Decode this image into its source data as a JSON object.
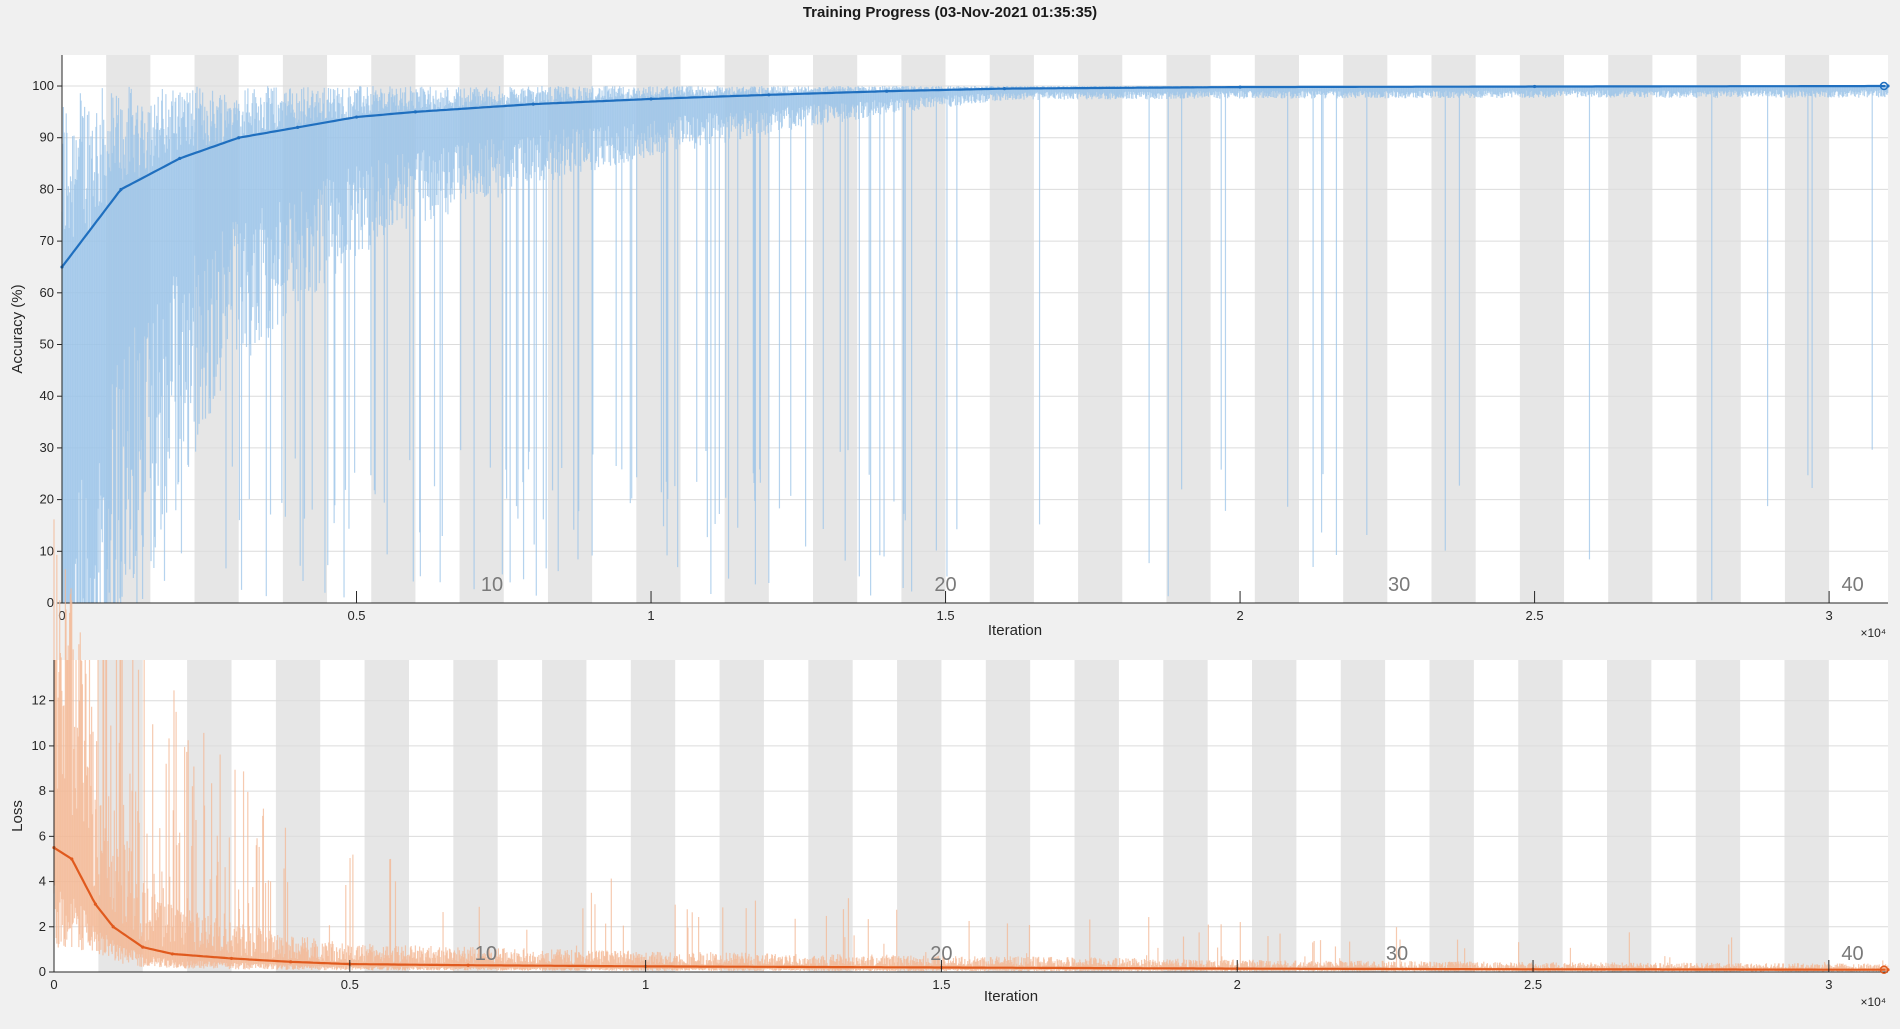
{
  "window": {
    "title": "Training Progress (03-Nov-2021 01:35:35)"
  },
  "colors": {
    "background": "#f0f0f0",
    "plot_bg": "#ffffff",
    "epoch_band": "#e6e6e6",
    "accuracy": "#1f6fbf",
    "accuracy_light": "#9cc4e8",
    "loss": "#e05a1e",
    "loss_light": "#f3b896",
    "axis": "#262626",
    "grid": "#dcdcdc",
    "epoch_label": "#7a7a7a"
  },
  "chart_data": [
    {
      "id": "accuracy",
      "type": "line",
      "title": "Training Progress (03-Nov-2021 01:35:35)",
      "xlabel": "Iteration",
      "ylabel": "Accuracy (%)",
      "xlim": [
        0,
        31000
      ],
      "ylim": [
        0,
        106
      ],
      "x_ticks": [
        0,
        5000,
        10000,
        15000,
        20000,
        25000,
        30000
      ],
      "x_tick_labels": [
        "0",
        "0.5",
        "1",
        "1.5",
        "2",
        "2.5",
        "3"
      ],
      "x_exponent": "×10⁴",
      "y_ticks": [
        0,
        10,
        20,
        30,
        40,
        50,
        60,
        70,
        80,
        90,
        100
      ],
      "y_tick_labels": [
        "0",
        "10",
        "20",
        "30",
        "40",
        "50",
        "60",
        "70",
        "80",
        "90",
        "100"
      ],
      "epoch_labels": [
        "10",
        "20",
        "30",
        "40"
      ],
      "epoch_label_x": [
        7300,
        15000,
        22700,
        30400
      ],
      "epochs": 41,
      "iterations_per_epoch": 750,
      "series": [
        {
          "name": "Smoothed training accuracy",
          "x": [
            0,
            1000,
            2000,
            3000,
            4000,
            5000,
            6000,
            8000,
            10000,
            12000,
            14000,
            16000,
            20000,
            25000,
            31000
          ],
          "values": [
            65,
            80,
            86,
            90,
            92,
            94,
            95,
            96.5,
            97.5,
            98.3,
            99,
            99.5,
            99.8,
            99.9,
            100
          ]
        }
      ]
    },
    {
      "id": "loss",
      "type": "line",
      "xlabel": "Iteration",
      "ylabel": "Loss",
      "xlim": [
        0,
        31000
      ],
      "ylim": [
        0,
        13.8
      ],
      "x_ticks": [
        0,
        5000,
        10000,
        15000,
        20000,
        25000,
        30000
      ],
      "x_tick_labels": [
        "0",
        "0.5",
        "1",
        "1.5",
        "2",
        "2.5",
        "3"
      ],
      "x_exponent": "×10⁴",
      "y_ticks": [
        0,
        2,
        4,
        6,
        8,
        10,
        12
      ],
      "y_tick_labels": [
        "0",
        "2",
        "4",
        "6",
        "8",
        "10",
        "12"
      ],
      "epoch_labels": [
        "10",
        "20",
        "30",
        "40"
      ],
      "epoch_label_x": [
        7300,
        15000,
        22700,
        30400
      ],
      "epochs": 41,
      "iterations_per_epoch": 750,
      "series": [
        {
          "name": "Smoothed training loss",
          "x": [
            0,
            300,
            700,
            1000,
            1500,
            2000,
            3000,
            4000,
            5000,
            7000,
            10000,
            15000,
            20000,
            25000,
            31000
          ],
          "values": [
            5.5,
            5.0,
            3.0,
            2.0,
            1.1,
            0.8,
            0.6,
            0.45,
            0.35,
            0.3,
            0.25,
            0.2,
            0.15,
            0.12,
            0.1
          ]
        }
      ]
    }
  ]
}
